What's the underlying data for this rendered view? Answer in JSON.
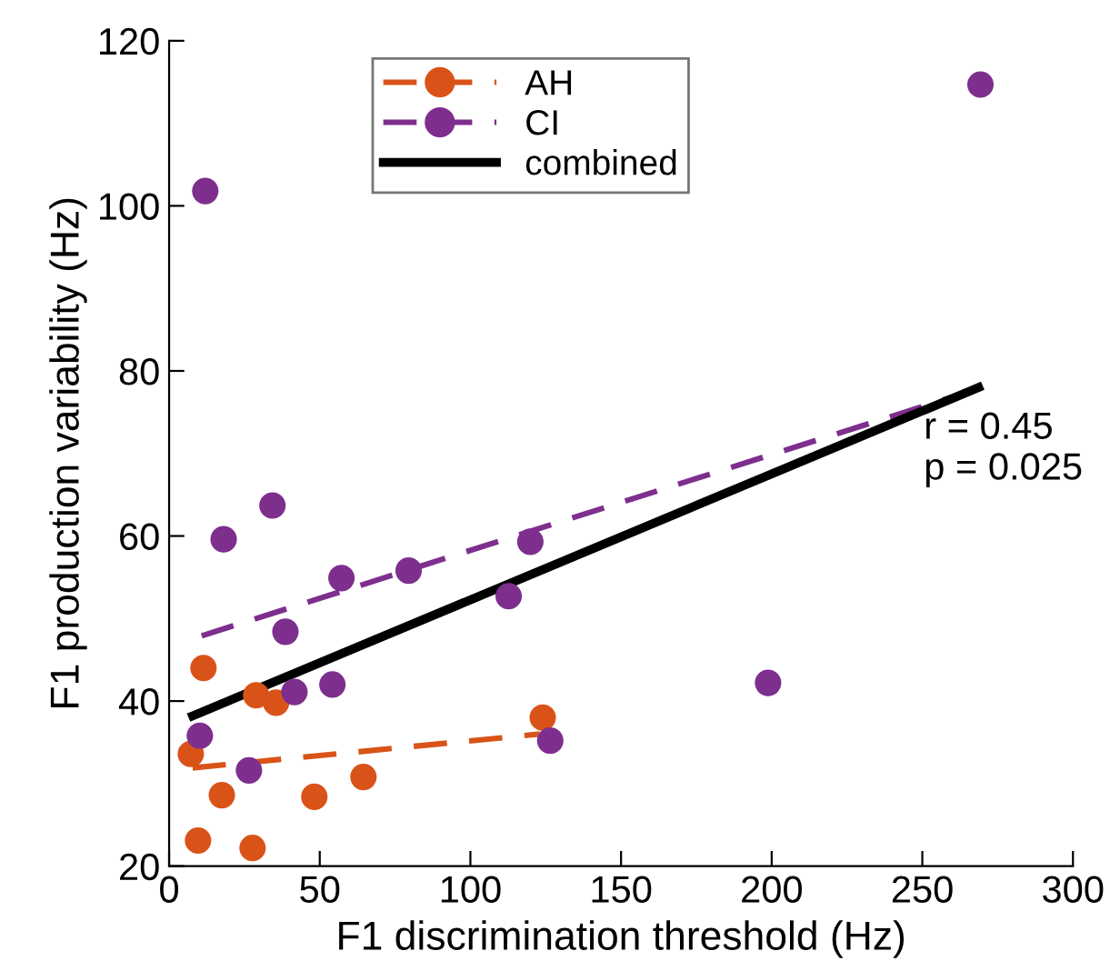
{
  "chart_data": {
    "type": "scatter",
    "xlabel": "F1 discrimination threshold (Hz)",
    "ylabel": "F1 production variability (Hz)",
    "xlim": [
      0,
      300
    ],
    "xticks": [
      0,
      50,
      100,
      150,
      200,
      250,
      300
    ],
    "ylim": [
      20,
      120
    ],
    "yticks": [
      20,
      40,
      60,
      80,
      100,
      120
    ],
    "grid": false,
    "legend": "top",
    "marker": "circle",
    "annotations": [
      "r = 0.45\np = 0.025"
    ],
    "series": [
      {
        "name": "AH",
        "color": "#d95319",
        "x": [
          7.2,
          11.4,
          17.5,
          9.6,
          27.7,
          28.9,
          35.5,
          48.2,
          64.5,
          124
        ],
        "values": [
          33.6,
          44.0,
          28.6,
          23.1,
          22.2,
          40.7,
          39.8,
          28.4,
          30.8,
          38.0
        ]
      },
      {
        "name": "CI",
        "color": "#7e2f8e",
        "x": [
          12,
          18.1,
          34.3,
          57.2,
          79.5,
          119.9,
          112.7,
          38.6,
          41.6,
          54.2,
          10.2,
          26.5,
          126.5,
          198.8,
          269.3
        ],
        "values": [
          101.8,
          59.6,
          63.7,
          54.9,
          55.8,
          59.3,
          52.7,
          48.4,
          41.1,
          42.0,
          35.8,
          31.6,
          35.2,
          42.2,
          114.7
        ]
      },
      {
        "type": "line",
        "color": "#d95319",
        "line_style": "dashed",
        "marker": "none",
        "x": [
          7.8,
          123
        ],
        "values": [
          31.9,
          36.0
        ]
      },
      {
        "type": "line",
        "color": "#7e2f8e",
        "line_style": "dashed",
        "marker": "none",
        "x": [
          10.8,
          270
        ],
        "values": [
          47.9,
          78.0
        ]
      },
      {
        "name": "combined",
        "type": "line",
        "color": "#000000",
        "line_style": "solid",
        "marker": "none",
        "x": [
          7.8,
          268.7
        ],
        "values": [
          38.2,
          78.0
        ]
      }
    ]
  }
}
